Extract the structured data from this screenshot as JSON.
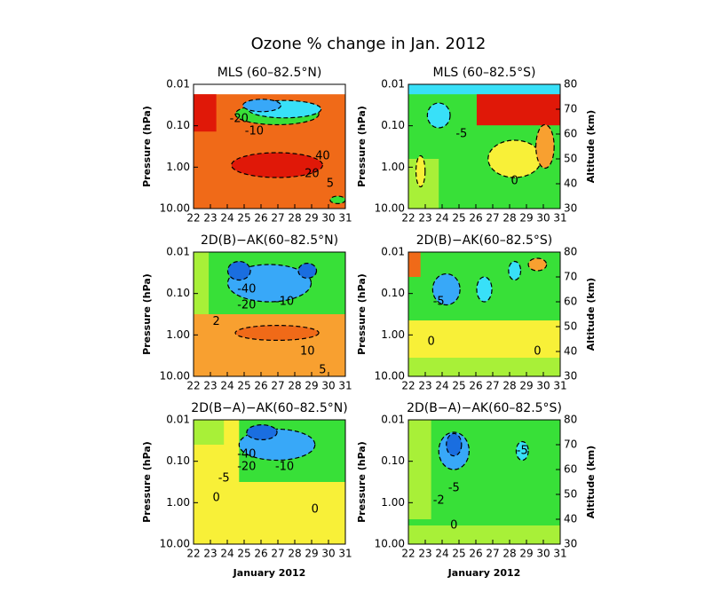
{
  "title": "Ozone % change in Jan. 2012",
  "chart_data": [
    {
      "type": "contour",
      "title": "MLS (60–82.5°N)",
      "ylabel": "Pressure (hPa)",
      "log_y": true,
      "xlim": [
        22,
        31
      ],
      "xticks": [
        22,
        23,
        24,
        25,
        26,
        27,
        28,
        29,
        30,
        31
      ],
      "ylim": [
        10,
        0.01
      ],
      "yticks": [
        {
          "value": 0.01,
          "label": "0.01"
        },
        {
          "value": 0.1,
          "label": "0.10"
        },
        {
          "value": 1,
          "label": "1.00"
        },
        {
          "value": 10,
          "label": "10.00"
        }
      ],
      "contour_labels": [
        "-20",
        "-10",
        "40",
        "20",
        "5"
      ]
    },
    {
      "type": "contour",
      "title": "MLS (60–82.5°S)",
      "ylabel": "Pressure (hPa)",
      "y2label": "Altitude (km)",
      "log_y": true,
      "xlim": [
        22,
        31
      ],
      "xticks": [
        22,
        23,
        24,
        25,
        26,
        27,
        28,
        29,
        30,
        31
      ],
      "ylim": [
        10,
        0.01
      ],
      "yticks": [
        {
          "value": 0.01,
          "label": "0.01"
        },
        {
          "value": 0.1,
          "label": "0.10"
        },
        {
          "value": 1,
          "label": "1.00"
        },
        {
          "value": 10,
          "label": "10.00"
        }
      ],
      "y2lim": [
        30,
        80
      ],
      "y2ticks": [
        30,
        40,
        50,
        60,
        70,
        80
      ],
      "contour_labels": [
        "-5",
        "0"
      ]
    },
    {
      "type": "contour",
      "title": "2D(B)−AK(60–82.5°N)",
      "ylabel": "Pressure (hPa)",
      "log_y": true,
      "xlim": [
        22,
        31
      ],
      "xticks": [
        22,
        23,
        24,
        25,
        26,
        27,
        28,
        29,
        30,
        31
      ],
      "ylim": [
        10,
        0.01
      ],
      "yticks": [
        {
          "value": 0.01,
          "label": "0.01"
        },
        {
          "value": 0.1,
          "label": "0.10"
        },
        {
          "value": 1,
          "label": "1.00"
        },
        {
          "value": 10,
          "label": "10.00"
        }
      ],
      "contour_labels": [
        "-40",
        "-20",
        "-10",
        "2",
        "10",
        "5"
      ]
    },
    {
      "type": "contour",
      "title": "2D(B)−AK(60–82.5°S)",
      "ylabel": "Pressure (hPa)",
      "y2label": "Altitude (km)",
      "log_y": true,
      "xlim": [
        22,
        31
      ],
      "xticks": [
        22,
        23,
        24,
        25,
        26,
        27,
        28,
        29,
        30,
        31
      ],
      "ylim": [
        10,
        0.01
      ],
      "yticks": [
        {
          "value": 0.01,
          "label": "0.01"
        },
        {
          "value": 0.1,
          "label": "0.10"
        },
        {
          "value": 1,
          "label": "1.00"
        },
        {
          "value": 10,
          "label": "10.00"
        }
      ],
      "y2lim": [
        30,
        80
      ],
      "y2ticks": [
        30,
        40,
        50,
        60,
        70,
        80
      ],
      "contour_labels": [
        "-5",
        "0",
        "0"
      ]
    },
    {
      "type": "contour",
      "title": "2D(B−A)−AK(60–82.5°N)",
      "xlabel": "January 2012",
      "ylabel": "Pressure (hPa)",
      "log_y": true,
      "xlim": [
        22,
        31
      ],
      "xticks": [
        22,
        23,
        24,
        25,
        26,
        27,
        28,
        29,
        30,
        31
      ],
      "ylim": [
        10,
        0.01
      ],
      "yticks": [
        {
          "value": 0.01,
          "label": "0.01"
        },
        {
          "value": 0.1,
          "label": "0.10"
        },
        {
          "value": 1,
          "label": "1.00"
        },
        {
          "value": 10,
          "label": "10.00"
        }
      ],
      "contour_labels": [
        "-40",
        "-20",
        "-10",
        "-5",
        "0",
        "0"
      ]
    },
    {
      "type": "contour",
      "title": "2D(B−A)−AK(60–82.5°S)",
      "xlabel": "January 2012",
      "ylabel": "Pressure (hPa)",
      "y2label": "Altitude (km)",
      "log_y": true,
      "xlim": [
        22,
        31
      ],
      "xticks": [
        22,
        23,
        24,
        25,
        26,
        27,
        28,
        29,
        30,
        31
      ],
      "ylim": [
        10,
        0.01
      ],
      "yticks": [
        {
          "value": 0.01,
          "label": "0.01"
        },
        {
          "value": 0.1,
          "label": "0.10"
        },
        {
          "value": 1,
          "label": "1.00"
        },
        {
          "value": 10,
          "label": "10.00"
        }
      ],
      "y2lim": [
        30,
        80
      ],
      "y2ticks": [
        30,
        40,
        50,
        60,
        70,
        80
      ],
      "contour_labels": [
        "-5",
        "-5",
        "-2",
        "0"
      ]
    }
  ]
}
